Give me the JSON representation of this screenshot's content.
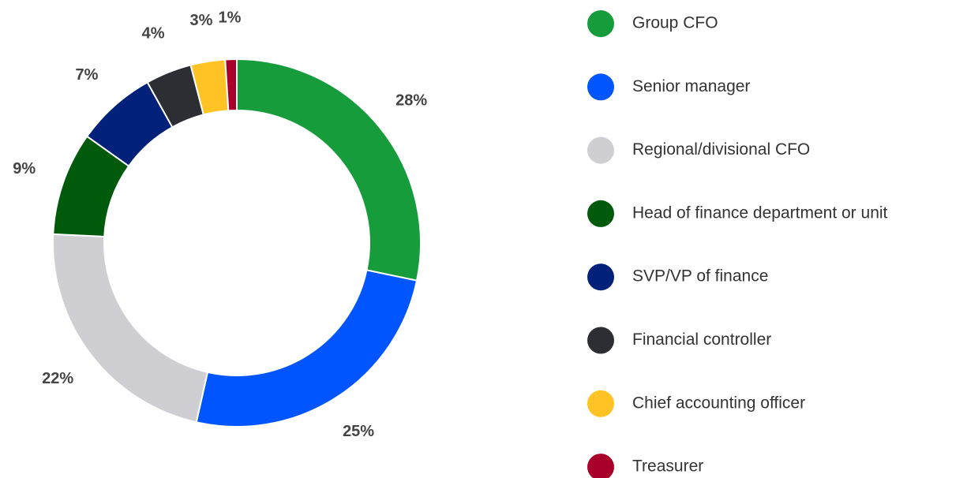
{
  "chart_data": {
    "type": "donut",
    "categories": [
      "Group CFO",
      "Senior manager",
      "Regional/divisional CFO",
      "Head of finance department or unit",
      "SVP/VP of finance",
      "Financial controller",
      "Chief accounting officer",
      "Treasurer"
    ],
    "values": [
      28,
      25,
      22,
      9,
      7,
      4,
      3,
      1
    ],
    "value_labels": [
      "28%",
      "25%",
      "22%",
      "9%",
      "7%",
      "4%",
      "3%",
      "1%"
    ],
    "colors": [
      "#169c3b",
      "#0055ff",
      "#ceced3",
      "#005a0b",
      "#00217a",
      "#2d2e33",
      "#ffc325",
      "#a8002b"
    ],
    "legend": "right"
  }
}
